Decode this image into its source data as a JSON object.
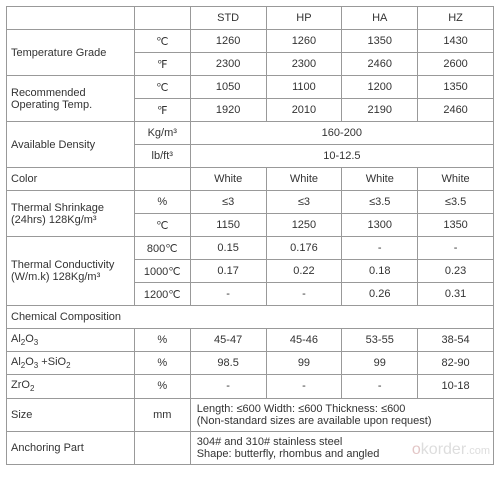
{
  "table": {
    "header": [
      "",
      "",
      "STD",
      "HP",
      "HA",
      "HZ"
    ],
    "rows": {
      "temp_grade": {
        "label": "Temperature Grade",
        "u1": "℃",
        "v1": [
          "1260",
          "1260",
          "1350",
          "1430"
        ],
        "u2": "℉",
        "v2": [
          "2300",
          "2300",
          "2460",
          "2600"
        ]
      },
      "rec_temp": {
        "label": "Recommended Operating Temp.",
        "u1": "℃",
        "v1": [
          "1050",
          "1100",
          "1200",
          "1350"
        ],
        "u2": "℉",
        "v2": [
          "1920",
          "2010",
          "2190",
          "2460"
        ]
      },
      "density": {
        "label": "Available Density",
        "u1": "Kg/m³",
        "v1": "160-200",
        "u2": "lb/ft³",
        "v2": "10-12.5"
      },
      "color": {
        "label": "Color",
        "unit": "",
        "vals": [
          "White",
          "White",
          "White",
          "White"
        ]
      },
      "shrinkage": {
        "label": "Thermal Shrinkage (24hrs) 128Kg/m³",
        "u1": "%",
        "v1": [
          "≤3",
          "≤3",
          "≤3.5",
          "≤3.5"
        ],
        "u2": "℃",
        "v2": [
          "1150",
          "1250",
          "1300",
          "1350"
        ]
      },
      "conductivity": {
        "label": "Thermal Conductivity (W/m.k) 128Kg/m³",
        "u1": "800℃",
        "v1": [
          "0.15",
          "0.176",
          "-",
          "-"
        ],
        "u2": "1000℃",
        "v2": [
          "0.17",
          "0.22",
          "0.18",
          "0.23"
        ],
        "u3": "1200℃",
        "v3": [
          "-",
          "-",
          "0.26",
          "0.31"
        ]
      },
      "chemical": {
        "label": "Chemical Composition",
        "r1": {
          "label_html": "Al<sub class='sub'>2</sub>O<sub class='sub'>3</sub>",
          "unit": "%",
          "vals": [
            "45-47",
            "45-46",
            "53-55",
            "38-54"
          ]
        },
        "r2": {
          "label_html": "Al<sub class='sub'>2</sub>O<sub class='sub'>3</sub> +SiO<sub class='sub'>2</sub>",
          "unit": "%",
          "vals": [
            "98.5",
            "99",
            "99",
            "82-90"
          ]
        },
        "r3": {
          "label_html": "ZrO<sub class='sub'>2</sub>",
          "unit": "%",
          "vals": [
            "-",
            "-",
            "-",
            "10-18"
          ]
        }
      },
      "size": {
        "label": "Size",
        "unit": "mm",
        "text": "Length: ≤600   Width: ≤600   Thickness: ≤600\n(Non-standard sizes are available upon request)"
      },
      "anchoring": {
        "label": "Anchoring Part",
        "unit": "",
        "text": "304# and 310# stainless steel\nShape: butterfly, rhombus and angled"
      }
    }
  },
  "watermark": "okorder.com",
  "style": {
    "col_widths": [
      "128px",
      "56px",
      "76px",
      "76px",
      "76px",
      "76px"
    ],
    "border_color": "#999999",
    "text_color": "#333333",
    "font_size": "11px"
  }
}
